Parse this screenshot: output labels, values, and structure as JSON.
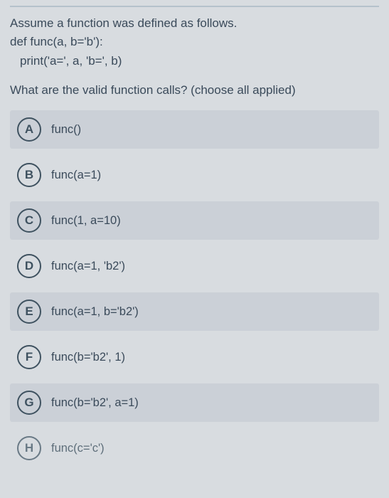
{
  "prompt": {
    "line1": "Assume a function was defined as follows.",
    "line2": "def func(a, b='b'):",
    "line3": "print('a=', a, 'b=', b)"
  },
  "question": "What are the valid function calls? (choose all applied)",
  "options": [
    {
      "letter": "A",
      "text": "func()"
    },
    {
      "letter": "B",
      "text": "func(a=1)"
    },
    {
      "letter": "C",
      "text": "func(1, a=10)"
    },
    {
      "letter": "D",
      "text": "func(a=1, 'b2')"
    },
    {
      "letter": "E",
      "text": "func(a=1, b='b2')"
    },
    {
      "letter": "F",
      "text": "func(b='b2', 1)"
    },
    {
      "letter": "G",
      "text": "func(b='b2', a=1)"
    },
    {
      "letter": "H",
      "text": "func(c='c')"
    }
  ],
  "colors": {
    "background": "#d8dce0",
    "text": "#3a4a5a",
    "circle_border": "#3f5260",
    "option_shade": "rgba(160,170,180,0.22)"
  }
}
